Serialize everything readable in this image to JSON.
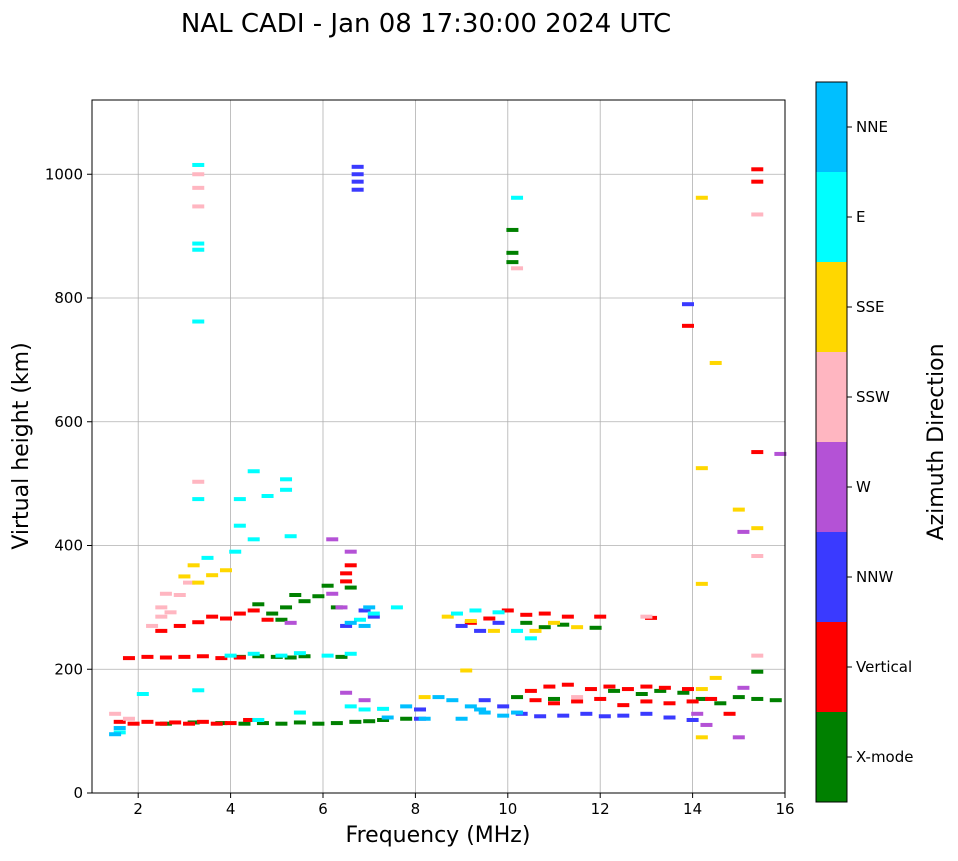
{
  "chart_data": {
    "type": "scatter",
    "title": "NAL CADI - Jan 08 17:30:00 2024 UTC",
    "xlabel": "Frequency (MHz)",
    "ylabel": "Virtual height (km)",
    "xlim": [
      1,
      16
    ],
    "ylim": [
      0,
      1120
    ],
    "xticks": [
      2,
      4,
      6,
      8,
      10,
      12,
      14,
      16
    ],
    "yticks": [
      0,
      200,
      400,
      600,
      800,
      1000
    ],
    "grid": true,
    "colorbar": {
      "label": "Azimuth Direction",
      "categories": [
        {
          "name": "X-mode",
          "color": "#008000"
        },
        {
          "name": "Vertical",
          "color": "#ff0000"
        },
        {
          "name": "NNW",
          "color": "#3a3aff"
        },
        {
          "name": "W",
          "color": "#b452d6"
        },
        {
          "name": "SSW",
          "color": "#ffb6c1"
        },
        {
          "name": "SSE",
          "color": "#ffd700"
        },
        {
          "name": "E",
          "color": "#00ffff"
        },
        {
          "name": "NNE",
          "color": "#00bfff"
        }
      ]
    },
    "series": [
      {
        "name": "X-mode",
        "points": [
          [
            2.6,
            112
          ],
          [
            3.2,
            114
          ],
          [
            3.8,
            113
          ],
          [
            4.3,
            112
          ],
          [
            4.7,
            113
          ],
          [
            5.1,
            112
          ],
          [
            5.5,
            114
          ],
          [
            5.9,
            112
          ],
          [
            6.3,
            113
          ],
          [
            6.7,
            115
          ],
          [
            7.0,
            116
          ],
          [
            7.3,
            118
          ],
          [
            7.8,
            120
          ],
          [
            4.2,
            220
          ],
          [
            4.6,
            221
          ],
          [
            5.0,
            220
          ],
          [
            5.3,
            219
          ],
          [
            5.6,
            221
          ],
          [
            6.4,
            220
          ],
          [
            5.2,
            300
          ],
          [
            5.4,
            320
          ],
          [
            5.6,
            310
          ],
          [
            5.9,
            318
          ],
          [
            6.1,
            335
          ],
          [
            6.3,
            300
          ],
          [
            6.6,
            332
          ],
          [
            4.6,
            305
          ],
          [
            4.9,
            290
          ],
          [
            5.1,
            280
          ],
          [
            10.1,
            910
          ],
          [
            10.1,
            858
          ],
          [
            10.1,
            873
          ],
          [
            10.4,
            275
          ],
          [
            10.8,
            268
          ],
          [
            11.2,
            272
          ],
          [
            11.9,
            267
          ],
          [
            12.3,
            165
          ],
          [
            12.9,
            160
          ],
          [
            13.3,
            165
          ],
          [
            13.8,
            162
          ],
          [
            14.2,
            152
          ],
          [
            14.6,
            145
          ],
          [
            15.0,
            155
          ],
          [
            15.4,
            152
          ],
          [
            15.8,
            150
          ],
          [
            15.4,
            196
          ],
          [
            11.0,
            152
          ],
          [
            10.2,
            155
          ]
        ]
      },
      {
        "name": "Vertical",
        "points": [
          [
            1.6,
            115
          ],
          [
            1.9,
            112
          ],
          [
            2.2,
            115
          ],
          [
            2.5,
            112
          ],
          [
            2.8,
            114
          ],
          [
            3.1,
            112
          ],
          [
            3.4,
            115
          ],
          [
            3.7,
            112
          ],
          [
            4.0,
            113
          ],
          [
            4.4,
            118
          ],
          [
            1.8,
            218
          ],
          [
            2.2,
            220
          ],
          [
            2.6,
            219
          ],
          [
            3.0,
            220
          ],
          [
            3.4,
            221
          ],
          [
            3.8,
            218
          ],
          [
            4.2,
            219
          ],
          [
            2.5,
            262
          ],
          [
            2.9,
            270
          ],
          [
            3.3,
            276
          ],
          [
            3.6,
            285
          ],
          [
            3.9,
            282
          ],
          [
            4.2,
            290
          ],
          [
            4.5,
            295
          ],
          [
            4.8,
            280
          ],
          [
            6.5,
            355
          ],
          [
            6.5,
            342
          ],
          [
            6.6,
            368
          ],
          [
            9.2,
            275
          ],
          [
            9.6,
            282
          ],
          [
            10.0,
            295
          ],
          [
            10.4,
            288
          ],
          [
            10.8,
            290
          ],
          [
            11.3,
            285
          ],
          [
            12.0,
            285
          ],
          [
            13.1,
            283
          ],
          [
            10.5,
            165
          ],
          [
            10.9,
            172
          ],
          [
            11.3,
            175
          ],
          [
            11.8,
            168
          ],
          [
            12.2,
            172
          ],
          [
            12.6,
            168
          ],
          [
            13.0,
            172
          ],
          [
            13.4,
            170
          ],
          [
            13.9,
            168
          ],
          [
            10.6,
            150
          ],
          [
            11.0,
            145
          ],
          [
            11.5,
            148
          ],
          [
            12.0,
            152
          ],
          [
            12.5,
            142
          ],
          [
            13.0,
            148
          ],
          [
            13.5,
            145
          ],
          [
            14.0,
            148
          ],
          [
            14.4,
            152
          ],
          [
            14.8,
            128
          ],
          [
            13.9,
            755
          ],
          [
            15.4,
            1008
          ],
          [
            15.4,
            988
          ],
          [
            15.4,
            551
          ]
        ]
      },
      {
        "name": "NNW",
        "points": [
          [
            6.75,
            1012
          ],
          [
            6.75,
            1000
          ],
          [
            6.75,
            988
          ],
          [
            6.75,
            975
          ],
          [
            8.1,
            135
          ],
          [
            8.1,
            120
          ],
          [
            9.0,
            270
          ],
          [
            9.4,
            262
          ],
          [
            9.8,
            275
          ],
          [
            9.5,
            150
          ],
          [
            9.9,
            140
          ],
          [
            10.3,
            128
          ],
          [
            10.7,
            124
          ],
          [
            11.2,
            125
          ],
          [
            11.7,
            128
          ],
          [
            12.1,
            124
          ],
          [
            12.5,
            125
          ],
          [
            13.0,
            128
          ],
          [
            13.5,
            122
          ],
          [
            14.0,
            118
          ],
          [
            13.9,
            790
          ],
          [
            6.9,
            295
          ],
          [
            7.1,
            285
          ],
          [
            6.5,
            270
          ]
        ]
      },
      {
        "name": "W",
        "points": [
          [
            6.6,
            390
          ],
          [
            6.2,
            322
          ],
          [
            6.4,
            300
          ],
          [
            14.1,
            128
          ],
          [
            14.3,
            110
          ],
          [
            15.0,
            90
          ],
          [
            15.1,
            170
          ],
          [
            15.1,
            422
          ],
          [
            6.2,
            410
          ],
          [
            5.3,
            275
          ],
          [
            6.9,
            150
          ],
          [
            15.9,
            548
          ],
          [
            6.5,
            162
          ]
        ]
      },
      {
        "name": "SSW",
        "points": [
          [
            2.3,
            270
          ],
          [
            2.5,
            285
          ],
          [
            2.5,
            300
          ],
          [
            2.7,
            292
          ],
          [
            2.9,
            320
          ],
          [
            3.1,
            340
          ],
          [
            2.6,
            322
          ],
          [
            3.3,
            1000
          ],
          [
            3.3,
            978
          ],
          [
            3.3,
            948
          ],
          [
            3.3,
            503
          ],
          [
            10.2,
            848
          ],
          [
            15.4,
            935
          ],
          [
            15.4,
            383
          ],
          [
            15.4,
            222
          ],
          [
            11.5,
            155
          ],
          [
            13.0,
            285
          ],
          [
            1.5,
            128
          ],
          [
            1.8,
            120
          ]
        ]
      },
      {
        "name": "SSE",
        "points": [
          [
            3.0,
            350
          ],
          [
            3.2,
            368
          ],
          [
            3.3,
            340
          ],
          [
            3.6,
            352
          ],
          [
            3.9,
            360
          ],
          [
            8.2,
            155
          ],
          [
            8.7,
            285
          ],
          [
            9.2,
            278
          ],
          [
            9.7,
            262
          ],
          [
            10.6,
            262
          ],
          [
            11.0,
            275
          ],
          [
            11.5,
            268
          ],
          [
            14.2,
            962
          ],
          [
            14.5,
            695
          ],
          [
            14.2,
            525
          ],
          [
            14.2,
            338
          ],
          [
            15.0,
            458
          ],
          [
            15.4,
            428
          ],
          [
            14.5,
            186
          ],
          [
            14.2,
            90
          ],
          [
            14.2,
            168
          ],
          [
            9.1,
            198
          ]
        ]
      },
      {
        "name": "E",
        "points": [
          [
            3.3,
            1015
          ],
          [
            3.3,
            888
          ],
          [
            3.3,
            878
          ],
          [
            3.3,
            762
          ],
          [
            3.3,
            475
          ],
          [
            4.2,
            475
          ],
          [
            4.2,
            432
          ],
          [
            4.5,
            520
          ],
          [
            4.8,
            480
          ],
          [
            5.2,
            507
          ],
          [
            5.2,
            490
          ],
          [
            4.5,
            410
          ],
          [
            4.1,
            390
          ],
          [
            3.5,
            380
          ],
          [
            5.3,
            415
          ],
          [
            4.0,
            222
          ],
          [
            4.5,
            225
          ],
          [
            5.1,
            222
          ],
          [
            5.5,
            226
          ],
          [
            6.1,
            222
          ],
          [
            6.6,
            225
          ],
          [
            3.3,
            166
          ],
          [
            2.1,
            160
          ],
          [
            6.6,
            140
          ],
          [
            6.9,
            135
          ],
          [
            7.3,
            136
          ],
          [
            10.2,
            962
          ],
          [
            10.2,
            262
          ],
          [
            10.5,
            250
          ],
          [
            8.9,
            290
          ],
          [
            9.3,
            295
          ],
          [
            9.8,
            292
          ],
          [
            7.6,
            300
          ],
          [
            1.6,
            98
          ],
          [
            4.6,
            118
          ],
          [
            5.5,
            130
          ],
          [
            7.1,
            290
          ],
          [
            6.8,
            280
          ]
        ]
      },
      {
        "name": "NNE",
        "points": [
          [
            1.5,
            95
          ],
          [
            1.6,
            105
          ],
          [
            8.5,
            155
          ],
          [
            8.8,
            150
          ],
          [
            9.2,
            140
          ],
          [
            9.5,
            130
          ],
          [
            9.9,
            125
          ],
          [
            10.2,
            130
          ],
          [
            6.6,
            275
          ],
          [
            6.9,
            270
          ],
          [
            7.0,
            300
          ],
          [
            7.4,
            122
          ],
          [
            7.8,
            140
          ],
          [
            8.2,
            120
          ],
          [
            9.0,
            120
          ],
          [
            9.4,
            135
          ]
        ]
      }
    ]
  }
}
